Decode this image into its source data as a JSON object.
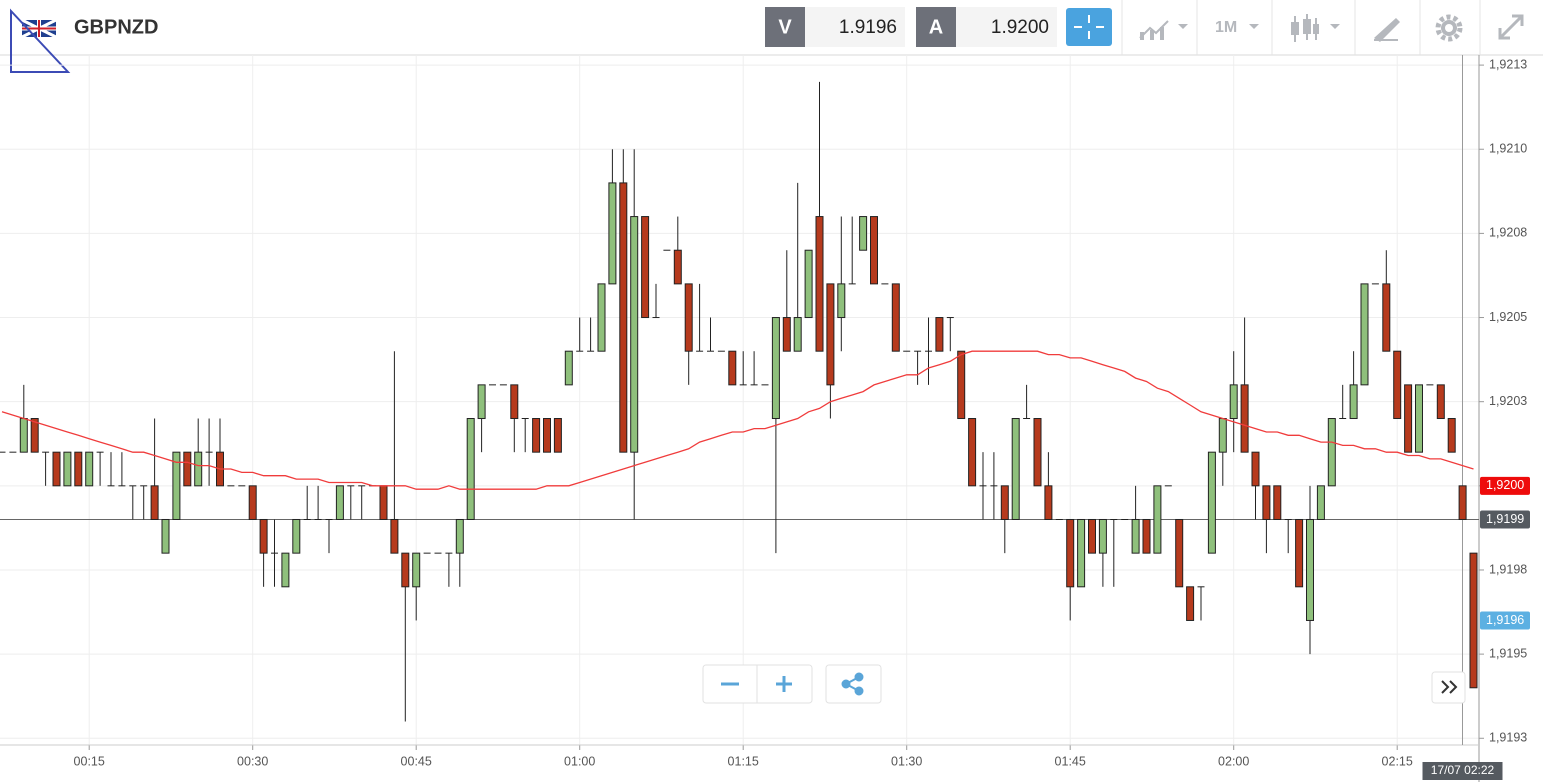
{
  "toolbar": {
    "instrument": "GBPNZD",
    "bid_label": "V",
    "bid": "1.9196",
    "ask_label": "A",
    "ask": "1.9200",
    "timeframe": "1M"
  },
  "chart_data": {
    "type": "candlestick",
    "categories": [
      null,
      null,
      null,
      null,
      null,
      null,
      null,
      null,
      "00:15",
      null,
      null,
      null,
      null,
      null,
      null,
      null,
      null,
      null,
      null,
      null,
      null,
      null,
      null,
      "00:30",
      null,
      null,
      null,
      null,
      null,
      null,
      null,
      null,
      null,
      null,
      null,
      null,
      null,
      null,
      "00:45",
      null,
      null,
      null,
      null,
      null,
      null,
      null,
      null,
      null,
      null,
      null,
      null,
      null,
      null,
      "01:00",
      null,
      null,
      null,
      null,
      null,
      null,
      null,
      null,
      null,
      null,
      null,
      null,
      null,
      null,
      "01:15",
      null,
      null,
      null,
      null,
      null,
      null,
      null,
      null,
      null,
      null,
      null,
      null,
      null,
      null,
      "01:30",
      null,
      null,
      null,
      null,
      null,
      null,
      null,
      null,
      null,
      null,
      null,
      null,
      null,
      null,
      "01:45",
      null,
      null,
      null,
      null,
      null,
      null,
      null,
      null,
      null,
      null,
      null,
      null,
      null,
      null,
      "02:00",
      null,
      null,
      null,
      null,
      null,
      null,
      null,
      null,
      null,
      null,
      null,
      null,
      null,
      null,
      "02:15",
      null,
      null,
      null,
      null,
      null,
      null,
      null
    ],
    "open": [
      1.9201,
      1.9201,
      1.9201,
      1.9202,
      1.9201,
      1.9201,
      1.92,
      1.9201,
      1.92,
      1.9201,
      1.92,
      1.92,
      1.92,
      1.92,
      1.92,
      1.9198,
      1.9199,
      1.9201,
      1.92,
      1.9201,
      1.9201,
      1.92,
      1.92,
      1.92,
      1.9199,
      1.9198,
      1.9197,
      1.9198,
      1.9199,
      1.9199,
      1.9199,
      1.9199,
      1.92,
      1.92,
      1.92,
      1.92,
      1.9199,
      1.9198,
      1.9197,
      1.9198,
      1.9198,
      1.9198,
      1.9198,
      1.9199,
      1.9202,
      1.9203,
      1.9203,
      1.9203,
      1.9202,
      1.9202,
      1.9202,
      1.9202,
      1.9203,
      1.9204,
      1.9204,
      1.9204,
      1.9206,
      1.9209,
      1.9201,
      1.9208,
      1.9205,
      1.9207,
      1.9207,
      1.9206,
      1.9204,
      1.9204,
      1.9204,
      1.9204,
      1.9203,
      1.9203,
      1.9203,
      1.9202,
      1.9205,
      1.9204,
      1.9205,
      1.9208,
      1.9206,
      1.9205,
      1.9206,
      1.9207,
      1.9208,
      1.9206,
      1.9206,
      1.9204,
      1.9204,
      1.9204,
      1.9205,
      1.9205,
      1.9204,
      1.9202,
      1.92,
      1.92,
      1.92,
      1.9199,
      1.9202,
      1.9202,
      1.92,
      1.9199,
      1.9199,
      1.9197,
      1.9199,
      1.9198,
      1.9199,
      1.9199,
      1.9198,
      1.9199,
      1.9198,
      1.92,
      1.9199,
      1.9197,
      1.9197,
      1.9198,
      1.9201,
      1.9202,
      1.9203,
      1.9201,
      1.92,
      1.92,
      1.9199,
      1.9199,
      1.9196,
      1.9199,
      1.92,
      1.9202,
      1.9202,
      1.9203,
      1.9206,
      1.9206,
      1.9204,
      1.9203,
      1.9201,
      1.9203,
      1.9203,
      1.9202,
      1.92,
      1.9198
    ],
    "high": [
      1.9201,
      1.9201,
      1.9203,
      1.9202,
      1.9201,
      1.9201,
      1.9201,
      1.9201,
      1.9201,
      1.9201,
      1.9201,
      1.9201,
      1.92,
      1.92,
      1.9202,
      1.9199,
      1.9201,
      1.9201,
      1.9202,
      1.9202,
      1.9202,
      1.92,
      1.92,
      1.92,
      1.9199,
      1.9199,
      1.9198,
      1.9199,
      1.92,
      1.92,
      1.9199,
      1.92,
      1.92,
      1.92,
      1.92,
      1.92,
      1.9204,
      1.9198,
      1.9198,
      1.9198,
      1.9198,
      1.9198,
      1.9199,
      1.9202,
      1.9203,
      1.9203,
      1.9203,
      1.9203,
      1.9202,
      1.9202,
      1.9202,
      1.9202,
      1.9204,
      1.9205,
      1.9205,
      1.9206,
      1.921,
      1.921,
      1.921,
      1.9208,
      1.9206,
      1.9207,
      1.9208,
      1.9206,
      1.9206,
      1.9205,
      1.9204,
      1.9204,
      1.9204,
      1.9204,
      1.9203,
      1.9205,
      1.9207,
      1.9209,
      1.9207,
      1.9212,
      1.9206,
      1.9208,
      1.9208,
      1.9208,
      1.9208,
      1.9206,
      1.9206,
      1.9204,
      1.9204,
      1.9205,
      1.9205,
      1.9205,
      1.9204,
      1.9202,
      1.9201,
      1.9201,
      1.92,
      1.9202,
      1.9203,
      1.9202,
      1.9201,
      1.9199,
      1.9199,
      1.9199,
      1.9199,
      1.9199,
      1.9199,
      1.9199,
      1.92,
      1.9199,
      1.92,
      1.92,
      1.9199,
      1.9197,
      1.9197,
      1.9201,
      1.9202,
      1.9204,
      1.9205,
      1.9201,
      1.92,
      1.92,
      1.9199,
      1.9199,
      1.92,
      1.92,
      1.9202,
      1.9203,
      1.9204,
      1.9206,
      1.9206,
      1.9207,
      1.9204,
      1.9203,
      1.9203,
      1.9203,
      1.9203,
      1.9202,
      1.92,
      1.9198
    ],
    "low": [
      1.9201,
      1.9201,
      1.9201,
      1.9201,
      1.92,
      1.92,
      1.92,
      1.92,
      1.92,
      1.92,
      1.92,
      1.92,
      1.9199,
      1.9199,
      1.9199,
      1.9198,
      1.9199,
      1.92,
      1.92,
      1.92,
      1.92,
      1.92,
      1.92,
      1.9199,
      1.9197,
      1.9197,
      1.9197,
      1.9198,
      1.9199,
      1.9199,
      1.9198,
      1.9199,
      1.9199,
      1.9199,
      1.92,
      1.9199,
      1.9198,
      1.9193,
      1.9196,
      1.9198,
      1.9198,
      1.9197,
      1.9197,
      1.9199,
      1.9201,
      1.9203,
      1.9203,
      1.9201,
      1.9201,
      1.9201,
      1.9201,
      1.9201,
      1.9203,
      1.9204,
      1.9204,
      1.9204,
      1.9206,
      1.9201,
      1.9199,
      1.9205,
      1.9205,
      1.9207,
      1.9206,
      1.9203,
      1.9204,
      1.9204,
      1.9204,
      1.9203,
      1.9203,
      1.9203,
      1.9203,
      1.9198,
      1.9204,
      1.9204,
      1.9205,
      1.9204,
      1.9202,
      1.9204,
      1.9206,
      1.9207,
      1.9206,
      1.9206,
      1.9204,
      1.9204,
      1.9203,
      1.9203,
      1.9204,
      1.9204,
      1.9202,
      1.92,
      1.9199,
      1.9199,
      1.9198,
      1.9199,
      1.9202,
      1.92,
      1.9199,
      1.9199,
      1.9196,
      1.9197,
      1.9198,
      1.9197,
      1.9197,
      1.9199,
      1.9198,
      1.9198,
      1.9198,
      1.92,
      1.9197,
      1.9196,
      1.9196,
      1.9198,
      1.92,
      1.9201,
      1.9201,
      1.9199,
      1.9198,
      1.9199,
      1.9198,
      1.9197,
      1.9195,
      1.9199,
      1.92,
      1.9202,
      1.9202,
      1.9203,
      1.9206,
      1.9204,
      1.9202,
      1.9201,
      1.9201,
      1.9203,
      1.9202,
      1.9201,
      1.9199,
      1.9194
    ],
    "close": [
      1.9201,
      1.9201,
      1.9202,
      1.9201,
      1.9201,
      1.92,
      1.9201,
      1.92,
      1.9201,
      1.9201,
      1.92,
      1.92,
      1.92,
      1.92,
      1.9199,
      1.9199,
      1.9201,
      1.92,
      1.9201,
      1.9201,
      1.92,
      1.92,
      1.92,
      1.9199,
      1.9198,
      1.9198,
      1.9198,
      1.9199,
      1.9199,
      1.9199,
      1.9199,
      1.92,
      1.92,
      1.92,
      1.92,
      1.9199,
      1.9198,
      1.9197,
      1.9198,
      1.9198,
      1.9198,
      1.9198,
      1.9199,
      1.9202,
      1.9203,
      1.9203,
      1.9203,
      1.9202,
      1.9202,
      1.9201,
      1.9201,
      1.9201,
      1.9204,
      1.9204,
      1.9204,
      1.9206,
      1.9209,
      1.9201,
      1.9208,
      1.9205,
      1.9205,
      1.9207,
      1.9206,
      1.9204,
      1.9204,
      1.9204,
      1.9204,
      1.9203,
      1.9203,
      1.9203,
      1.9203,
      1.9205,
      1.9204,
      1.9205,
      1.9207,
      1.9204,
      1.9203,
      1.9206,
      1.9206,
      1.9208,
      1.9206,
      1.9206,
      1.9204,
      1.9204,
      1.9204,
      1.9204,
      1.9204,
      1.9205,
      1.9202,
      1.92,
      1.92,
      1.92,
      1.9199,
      1.9202,
      1.9202,
      1.92,
      1.9199,
      1.9199,
      1.9197,
      1.9199,
      1.9198,
      1.9199,
      1.9199,
      1.9199,
      1.9199,
      1.9198,
      1.92,
      1.92,
      1.9197,
      1.9196,
      1.9197,
      1.9201,
      1.9202,
      1.9203,
      1.9201,
      1.92,
      1.9199,
      1.9199,
      1.9199,
      1.9197,
      1.9199,
      1.92,
      1.9202,
      1.9202,
      1.9203,
      1.9206,
      1.9206,
      1.9204,
      1.9202,
      1.9201,
      1.9203,
      1.9203,
      1.9202,
      1.9201,
      1.9199,
      1.9194
    ],
    "up_color": "#8fc07c",
    "down_color": "#b63a1d",
    "ma": {
      "color": "#f03c3c",
      "values": [
        1.92022,
        1.92021,
        1.9202,
        1.92019,
        1.92018,
        1.92017,
        1.92016,
        1.92015,
        1.92014,
        1.92013,
        1.92012,
        1.92011,
        1.9201,
        1.9201,
        1.92009,
        1.92008,
        1.92007,
        1.92007,
        1.92006,
        1.92006,
        1.92005,
        1.92005,
        1.92004,
        1.92004,
        1.92003,
        1.92003,
        1.92003,
        1.92002,
        1.92002,
        1.92002,
        1.92001,
        1.92001,
        1.92001,
        1.92001,
        1.92,
        1.92,
        1.92,
        1.92,
        1.91999,
        1.91999,
        1.91999,
        1.92,
        1.91999,
        1.91999,
        1.91999,
        1.91999,
        1.91999,
        1.91999,
        1.91999,
        1.91999,
        1.92,
        1.92,
        1.92,
        1.92001,
        1.92002,
        1.92003,
        1.92004,
        1.92005,
        1.92006,
        1.92007,
        1.92008,
        1.92009,
        1.9201,
        1.92011,
        1.92013,
        1.92014,
        1.92015,
        1.92016,
        1.92016,
        1.92017,
        1.92017,
        1.92018,
        1.92019,
        1.9202,
        1.92022,
        1.92023,
        1.92025,
        1.92026,
        1.92027,
        1.92028,
        1.9203,
        1.92031,
        1.92032,
        1.92033,
        1.92033,
        1.92035,
        1.92036,
        1.92037,
        1.92039,
        1.9204,
        1.9204,
        1.9204,
        1.9204,
        1.9204,
        1.9204,
        1.9204,
        1.92039,
        1.92039,
        1.92038,
        1.92038,
        1.92037,
        1.92036,
        1.92035,
        1.92034,
        1.92032,
        1.92031,
        1.92029,
        1.92028,
        1.92026,
        1.92024,
        1.92022,
        1.92021,
        1.9202,
        1.92019,
        1.92018,
        1.92017,
        1.92016,
        1.92016,
        1.92015,
        1.92015,
        1.92014,
        1.92013,
        1.92013,
        1.92012,
        1.92012,
        1.92011,
        1.92011,
        1.9201,
        1.9201,
        1.92009,
        1.92009,
        1.92008,
        1.92008,
        1.92007,
        1.92006,
        1.92005
      ]
    },
    "ylim": [
      1.91923,
      1.92128
    ],
    "yticks": [
      {
        "value": 1.92125,
        "label": "1,9213"
      },
      {
        "value": 1.921,
        "label": "1,9210"
      },
      {
        "value": 1.92075,
        "label": "1,9208"
      },
      {
        "value": 1.9205,
        "label": "1,9205"
      },
      {
        "value": 1.92025,
        "label": "1,9203"
      },
      {
        "value": 1.92,
        "label": "1,9200"
      },
      {
        "value": 1.91975,
        "label": "1,9198"
      },
      {
        "value": 1.9195,
        "label": "1,9195"
      },
      {
        "value": 1.91925,
        "label": "1,9193"
      }
    ],
    "grid": true,
    "price_labels": [
      {
        "value": 1.92,
        "label": "1,9200",
        "color": "#ee0b0b"
      },
      {
        "value": 1.9199,
        "label": "1,9199",
        "color": "#555a60",
        "line": true
      },
      {
        "value": 1.9196,
        "label": "1,9196",
        "color": "#5cb0e2"
      }
    ],
    "cursor_label": "17/07 02:22"
  }
}
